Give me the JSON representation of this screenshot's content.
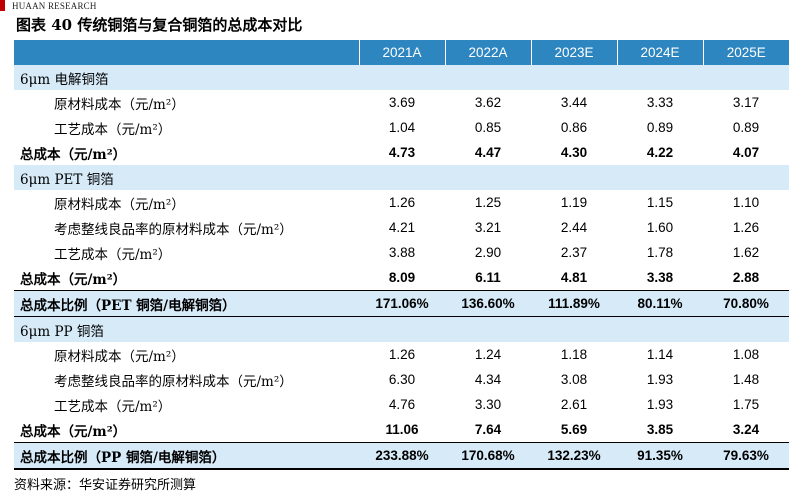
{
  "brand": "HUAAN RESEARCH",
  "title": "图表 40 传统铜箔与复合铜箔的总成本对比",
  "columns": [
    "2021A",
    "2022A",
    "2023E",
    "2024E",
    "2025E"
  ],
  "rows": [
    {
      "label": "6μm 电解铜箔"
    },
    {
      "label": "原材料成本（元/m²）",
      "values": [
        "3.69",
        "3.62",
        "3.44",
        "3.33",
        "3.17"
      ]
    },
    {
      "label": "工艺成本（元/m²）",
      "values": [
        "1.04",
        "0.85",
        "0.86",
        "0.89",
        "0.89"
      ]
    },
    {
      "label": "总成本（元/m²）",
      "values": [
        "4.73",
        "4.47",
        "4.30",
        "4.22",
        "4.07"
      ]
    },
    {
      "label": "6μm PET 铜箔"
    },
    {
      "label": "原材料成本（元/m²）",
      "values": [
        "1.26",
        "1.25",
        "1.19",
        "1.15",
        "1.10"
      ]
    },
    {
      "label": "考虑整线良品率的原材料成本（元/m²）",
      "values": [
        "4.21",
        "3.21",
        "2.44",
        "1.60",
        "1.26"
      ]
    },
    {
      "label": "工艺成本（元/m²）",
      "values": [
        "3.88",
        "2.90",
        "2.37",
        "1.78",
        "1.62"
      ]
    },
    {
      "label": "总成本（元/m²）",
      "values": [
        "8.09",
        "6.11",
        "4.81",
        "3.38",
        "2.88"
      ]
    },
    {
      "label": "总成本比例（PET 铜箔/电解铜箔）",
      "values": [
        "171.06%",
        "136.60%",
        "111.89%",
        "80.11%",
        "70.80%"
      ]
    },
    {
      "label": "6μm PP 铜箔"
    },
    {
      "label": "原材料成本（元/m²）",
      "values": [
        "1.26",
        "1.24",
        "1.18",
        "1.14",
        "1.08"
      ]
    },
    {
      "label": "考虑整线良品率的原材料成本（元/m²）",
      "values": [
        "6.30",
        "4.34",
        "3.08",
        "1.93",
        "1.48"
      ]
    },
    {
      "label": "工艺成本（元/m²）",
      "values": [
        "4.76",
        "3.30",
        "2.61",
        "1.93",
        "1.75"
      ]
    },
    {
      "label": "总成本（元/m²）",
      "values": [
        "11.06",
        "7.64",
        "5.69",
        "3.85",
        "3.24"
      ]
    },
    {
      "label": "总成本比例（PP 铜箔/电解铜箔）",
      "values": [
        "233.88%",
        "170.68%",
        "132.23%",
        "91.35%",
        "79.63%"
      ]
    }
  ],
  "source": "资料来源：华安证券研究所测算"
}
